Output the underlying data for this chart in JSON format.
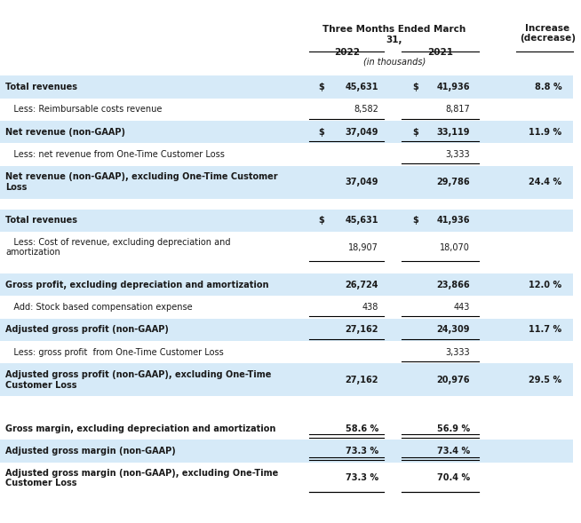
{
  "title_line1": "Three Months Ended March",
  "title_line2": "31,",
  "col_header_2022": "2022",
  "col_header_2021": "2021",
  "col_header_inthousands": "(in thousands)",
  "col_header_increase": "Increase",
  "col_header_decrease": "(decrease)",
  "bg_color_light": "#d6eaf8",
  "bg_color_white": "#ffffff",
  "text_color": "#1a1a1a",
  "rows": [
    {
      "label": "Total revenues",
      "indent": false,
      "val2022": "$ 45,631",
      "val2021": "$ 41,936",
      "change": "8.8 %",
      "bg": "light",
      "underline2022": false,
      "underline2021": false,
      "double_under": false
    },
    {
      "label": "   Less: Reimbursable costs revenue",
      "indent": true,
      "val2022": "8,582",
      "val2021": "8,817",
      "change": "",
      "bg": "white",
      "underline2022": true,
      "underline2021": true,
      "double_under": false
    },
    {
      "label": "Net revenue (non-GAAP)",
      "indent": false,
      "val2022": "$ 37,049",
      "val2021": "$ 33,119",
      "change": "11.9 %",
      "bg": "light",
      "underline2022": true,
      "underline2021": true,
      "double_under": false
    },
    {
      "label": "   Less: net revenue from One-Time Customer Loss",
      "indent": true,
      "val2022": "",
      "val2021": "3,333",
      "change": "",
      "bg": "white",
      "underline2022": false,
      "underline2021": true,
      "double_under": false
    },
    {
      "label": "Net revenue (non-GAAP), excluding One-Time Customer\nLoss",
      "indent": false,
      "val2022": "37,049",
      "val2021": "29,786",
      "change": "24.4 %",
      "bg": "light",
      "underline2022": false,
      "underline2021": false,
      "double_under": false
    },
    {
      "label": "",
      "indent": false,
      "val2022": "",
      "val2021": "",
      "change": "",
      "bg": "white",
      "underline2022": false,
      "underline2021": false,
      "double_under": false
    },
    {
      "label": "Total revenues",
      "indent": false,
      "val2022": "$ 45,631",
      "val2021": "$ 41,936",
      "change": "",
      "bg": "light",
      "underline2022": false,
      "underline2021": false,
      "double_under": false
    },
    {
      "label": "   Less: Cost of revenue, excluding depreciation and\namortization",
      "indent": true,
      "val2022": "18,907",
      "val2021": "18,070",
      "change": "",
      "bg": "white",
      "underline2022": true,
      "underline2021": true,
      "double_under": false
    },
    {
      "label": "",
      "indent": false,
      "val2022": "",
      "val2021": "",
      "change": "",
      "bg": "white",
      "underline2022": false,
      "underline2021": false,
      "double_under": false
    },
    {
      "label": "Gross profit, excluding depreciation and amortization",
      "indent": false,
      "val2022": "26,724",
      "val2021": "23,866",
      "change": "12.0 %",
      "bg": "light",
      "underline2022": false,
      "underline2021": false,
      "double_under": false
    },
    {
      "label": "   Add: Stock based compensation expense",
      "indent": true,
      "val2022": "438",
      "val2021": "443",
      "change": "",
      "bg": "white",
      "underline2022": true,
      "underline2021": true,
      "double_under": false
    },
    {
      "label": "Adjusted gross profit (non-GAAP)",
      "indent": false,
      "val2022": "27,162",
      "val2021": "24,309",
      "change": "11.7 %",
      "bg": "light",
      "underline2022": true,
      "underline2021": true,
      "double_under": false
    },
    {
      "label": "   Less: gross profit  from One-Time Customer Loss",
      "indent": true,
      "val2022": "",
      "val2021": "3,333",
      "change": "",
      "bg": "white",
      "underline2022": false,
      "underline2021": true,
      "double_under": false
    },
    {
      "label": "Adjusted gross profit (non-GAAP), excluding One-Time\nCustomer Loss",
      "indent": false,
      "val2022": "27,162",
      "val2021": "20,976",
      "change": "29.5 %",
      "bg": "light",
      "underline2022": false,
      "underline2021": false,
      "double_under": false
    },
    {
      "label": "",
      "indent": false,
      "val2022": "",
      "val2021": "",
      "change": "",
      "bg": "white",
      "underline2022": false,
      "underline2021": false,
      "double_under": false
    },
    {
      "label": "",
      "indent": false,
      "val2022": "",
      "val2021": "",
      "change": "",
      "bg": "white",
      "underline2022": false,
      "underline2021": false,
      "double_under": false
    },
    {
      "label": "Gross margin, excluding depreciation and amortization",
      "indent": false,
      "val2022": "58.6 %",
      "val2021": "56.9 %",
      "change": "",
      "bg": "white",
      "underline2022": true,
      "underline2021": true,
      "double_under": true
    },
    {
      "label": "Adjusted gross margin (non-GAAP)",
      "indent": false,
      "val2022": "73.3 %",
      "val2021": "73.4 %",
      "change": "",
      "bg": "light",
      "underline2022": true,
      "underline2021": true,
      "double_under": true
    },
    {
      "label": "Adjusted gross margin (non-GAAP), excluding One-Time\nCustomer Loss",
      "indent": false,
      "val2022": "73.3 %",
      "val2021": "70.4 %",
      "change": "",
      "bg": "white",
      "underline2022": true,
      "underline2021": true,
      "double_under": false
    }
  ]
}
